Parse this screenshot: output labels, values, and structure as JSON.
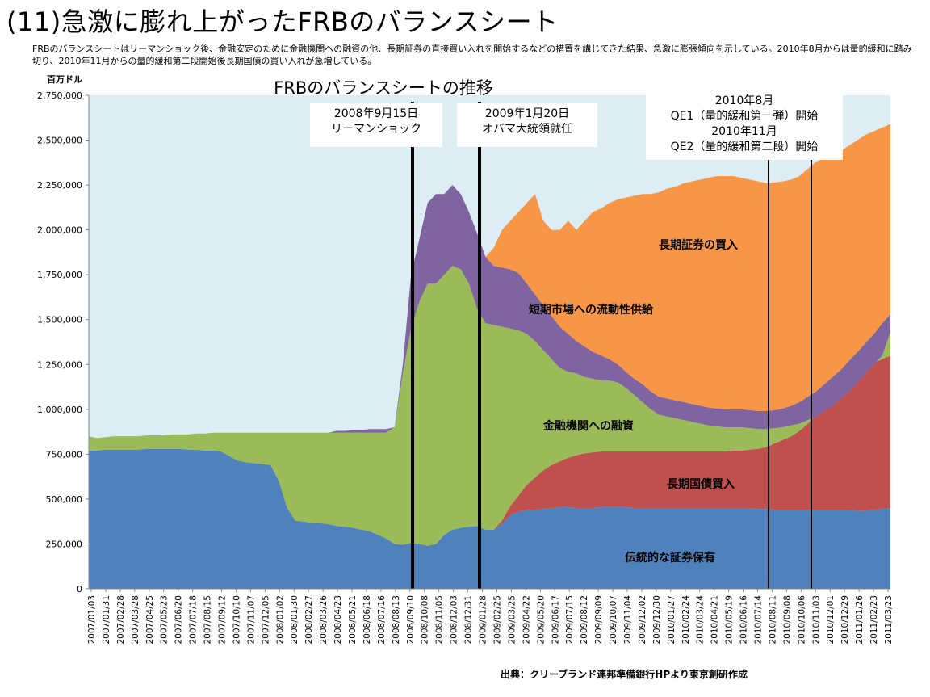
{
  "header": {
    "title": "(11)急激に膨れ上がったFRBのバランスシート",
    "intro": "FRBのバランスシートはリーマンショック後、金融安定のために金融機関への融資の他、長期証券の直接買い入れを開始するなどの措置を講じてきた結果、急激に膨張傾向を示している。2010年8月からは量的緩和に踏み切り、2010年11月からの量的緩和第二段開始後長期国債の買い入れが急増している。",
    "unit": "百万ドル"
  },
  "source": "出典：クリーブランド連邦準備銀行HPより東京創研作成",
  "colors": {
    "plot_bg": "#dcedf3",
    "traditional": "#4f81bd",
    "treasury": "#c0504d",
    "lending": "#9bbb59",
    "liquidity": "#8064a2",
    "longterm": "#f79646"
  },
  "callouts": {
    "lehman": [
      "2008年9月15日",
      "リーマンショック"
    ],
    "obama": [
      "2009年1月20日",
      "オバマ大統領就任"
    ],
    "qe": [
      "2010年8月",
      "QE1（量的緩和第一弾）開始",
      "2010年11月",
      "QE2（量的緩和第二段）開始"
    ]
  },
  "chart_data": {
    "type": "area",
    "stacked": true,
    "title": "FRBのバランスシートの推移",
    "ylabel": "百万ドル",
    "ylim": [
      0,
      2750000
    ],
    "yticks": [
      0,
      250000,
      500000,
      750000,
      1000000,
      1250000,
      1500000,
      1750000,
      2000000,
      2250000,
      2500000,
      2750000
    ],
    "ytick_labels": [
      "0",
      "250,000",
      "500,000",
      "750,000",
      "1,000,000",
      "1,250,000",
      "1,500,000",
      "1,750,000",
      "2,000,000",
      "2,250,000",
      "2,500,000",
      "2,750,000"
    ],
    "x_tick_labels": [
      "2007/01/03",
      "2007/01/31",
      "2007/02/28",
      "2007/03/28",
      "2007/04/25",
      "2007/05/23",
      "2007/06/20",
      "2007/07/18",
      "2007/08/15",
      "2007/09/12",
      "2007/10/10",
      "2007/11/07",
      "2007/12/05",
      "2008/01/02",
      "2008/01/30",
      "2008/02/27",
      "2008/03/26",
      "2008/04/23",
      "2008/05/21",
      "2008/06/18",
      "2008/07/16",
      "2008/08/13",
      "2008/09/10",
      "2008/10/08",
      "2008/11/05",
      "2008/12/03",
      "2008/12/31",
      "2009/01/28",
      "2009/02/25",
      "2009/03/25",
      "2009/04/22",
      "2009/05/20",
      "2009/06/17",
      "2009/07/15",
      "2009/08/12",
      "2009/09/09",
      "2009/10/07",
      "2009/11/04",
      "2009/12/02",
      "2009/12/30",
      "2010/01/27",
      "2010/02/24",
      "2010/03/24",
      "2010/04/21",
      "2010/05/19",
      "2010/06/16",
      "2010/07/14",
      "2010/08/11",
      "2010/09/08",
      "2010/10/06",
      "2010/11/03",
      "2010/12/01",
      "2010/12/29",
      "2011/01/26",
      "2011/02/23",
      "2011/03/23"
    ],
    "series_labels": {
      "traditional": "伝統的な証券保有",
      "treasury": "長期国債買入",
      "lending": "金融機関への融資",
      "liquidity": "短期市場への流動性供給",
      "longterm": "長期証券の買入"
    },
    "series_order": [
      "traditional",
      "treasury",
      "lending",
      "liquidity",
      "longterm"
    ],
    "cumulative_tops": {
      "traditional": [
        770000,
        770000,
        775000,
        775000,
        775000,
        775000,
        775000,
        780000,
        780000,
        780000,
        780000,
        780000,
        775000,
        775000,
        770000,
        770000,
        765000,
        740000,
        715000,
        705000,
        700000,
        695000,
        690000,
        600000,
        450000,
        380000,
        375000,
        365000,
        365000,
        360000,
        350000,
        345000,
        340000,
        330000,
        320000,
        300000,
        280000,
        250000,
        245000,
        255000,
        250000,
        240000,
        250000,
        300000,
        330000,
        340000,
        345000,
        350000,
        330000,
        330000,
        360000,
        410000,
        430000,
        440000,
        440000,
        445000,
        450000,
        455000,
        455000,
        450000,
        450000,
        450000,
        455000,
        455000,
        455000,
        455000,
        450000,
        450000,
        450000,
        450000,
        450000,
        450000,
        450000,
        450000,
        450000,
        450000,
        450000,
        450000,
        450000,
        450000,
        450000,
        445000,
        445000,
        440000,
        440000,
        440000,
        440000,
        440000,
        440000,
        440000,
        440000,
        440000,
        440000,
        435000,
        435000,
        440000,
        445000,
        450000
      ],
      "treasury": [
        770000,
        770000,
        775000,
        775000,
        775000,
        775000,
        775000,
        780000,
        780000,
        780000,
        780000,
        780000,
        775000,
        775000,
        770000,
        770000,
        765000,
        740000,
        715000,
        705000,
        700000,
        695000,
        690000,
        600000,
        450000,
        380000,
        375000,
        365000,
        365000,
        360000,
        350000,
        345000,
        340000,
        330000,
        320000,
        300000,
        280000,
        250000,
        245000,
        255000,
        250000,
        240000,
        250000,
        300000,
        330000,
        340000,
        345000,
        350000,
        330000,
        330000,
        380000,
        460000,
        520000,
        580000,
        620000,
        660000,
        690000,
        710000,
        730000,
        745000,
        755000,
        760000,
        765000,
        765000,
        765000,
        765000,
        765000,
        765000,
        765000,
        765000,
        765000,
        765000,
        765000,
        765000,
        765000,
        765000,
        765000,
        765000,
        770000,
        770000,
        775000,
        780000,
        790000,
        810000,
        830000,
        850000,
        880000,
        920000,
        970000,
        1020000,
        1070000,
        1110000,
        1150000,
        1190000,
        1230000,
        1260000,
        1280000,
        1300000
      ],
      "lending": [
        850000,
        840000,
        845000,
        850000,
        850000,
        850000,
        850000,
        855000,
        855000,
        855000,
        860000,
        860000,
        860000,
        865000,
        865000,
        870000,
        870000,
        870000,
        870000,
        870000,
        870000,
        870000,
        870000,
        870000,
        870000,
        870000,
        870000,
        870000,
        870000,
        870000,
        870000,
        870000,
        870000,
        870000,
        870000,
        870000,
        870000,
        900000,
        1200000,
        1450000,
        1600000,
        1700000,
        1700000,
        1750000,
        1800000,
        1780000,
        1700000,
        1560000,
        1480000,
        1470000,
        1460000,
        1450000,
        1440000,
        1420000,
        1380000,
        1330000,
        1280000,
        1230000,
        1210000,
        1200000,
        1180000,
        1170000,
        1160000,
        1160000,
        1150000,
        1120000,
        1080000,
        1040000,
        1000000,
        970000,
        960000,
        950000,
        940000,
        930000,
        920000,
        910000,
        905000,
        900000,
        900000,
        900000,
        895000,
        890000,
        890000,
        895000,
        900000,
        910000,
        920000,
        940000,
        960000,
        990000,
        1020000,
        1060000,
        1100000,
        1150000,
        1200000,
        1250000,
        1300000,
        1430000
      ],
      "liquidity": [
        850000,
        840000,
        845000,
        850000,
        850000,
        850000,
        850000,
        855000,
        855000,
        855000,
        860000,
        860000,
        860000,
        865000,
        865000,
        870000,
        870000,
        870000,
        870000,
        870000,
        870000,
        870000,
        870000,
        870000,
        870000,
        870000,
        870000,
        870000,
        870000,
        870000,
        880000,
        880000,
        885000,
        885000,
        890000,
        890000,
        890000,
        900000,
        1250000,
        1750000,
        1950000,
        2150000,
        2200000,
        2200000,
        2250000,
        2200000,
        2100000,
        1980000,
        1850000,
        1800000,
        1790000,
        1780000,
        1760000,
        1700000,
        1640000,
        1580000,
        1520000,
        1460000,
        1420000,
        1380000,
        1350000,
        1320000,
        1300000,
        1280000,
        1250000,
        1210000,
        1170000,
        1140000,
        1100000,
        1070000,
        1060000,
        1050000,
        1040000,
        1030000,
        1020000,
        1010000,
        1005000,
        1000000,
        1000000,
        1000000,
        995000,
        990000,
        990000,
        995000,
        1005000,
        1020000,
        1040000,
        1070000,
        1100000,
        1140000,
        1180000,
        1220000,
        1270000,
        1320000,
        1370000,
        1420000,
        1480000,
        1530000
      ],
      "longterm": [
        850000,
        840000,
        845000,
        850000,
        850000,
        850000,
        850000,
        855000,
        855000,
        855000,
        860000,
        860000,
        860000,
        865000,
        865000,
        870000,
        870000,
        870000,
        870000,
        870000,
        870000,
        870000,
        870000,
        870000,
        870000,
        870000,
        870000,
        870000,
        870000,
        870000,
        880000,
        880000,
        885000,
        885000,
        890000,
        890000,
        890000,
        900000,
        1250000,
        1750000,
        1950000,
        2150000,
        2200000,
        2200000,
        2250000,
        2200000,
        2100000,
        1980000,
        1850000,
        1900000,
        2000000,
        2050000,
        2100000,
        2150000,
        2200000,
        2050000,
        2000000,
        2000000,
        2050000,
        2000000,
        2050000,
        2100000,
        2120000,
        2150000,
        2170000,
        2180000,
        2190000,
        2200000,
        2200000,
        2210000,
        2230000,
        2240000,
        2260000,
        2270000,
        2280000,
        2290000,
        2300000,
        2300000,
        2300000,
        2290000,
        2280000,
        2270000,
        2260000,
        2265000,
        2270000,
        2280000,
        2300000,
        2340000,
        2380000,
        2400000,
        2420000,
        2440000,
        2470000,
        2500000,
        2530000,
        2550000,
        2570000,
        2590000
      ]
    },
    "event_lines": [
      "2008/09/15",
      "2009/01/20",
      "2010/08",
      "2010/11"
    ]
  }
}
